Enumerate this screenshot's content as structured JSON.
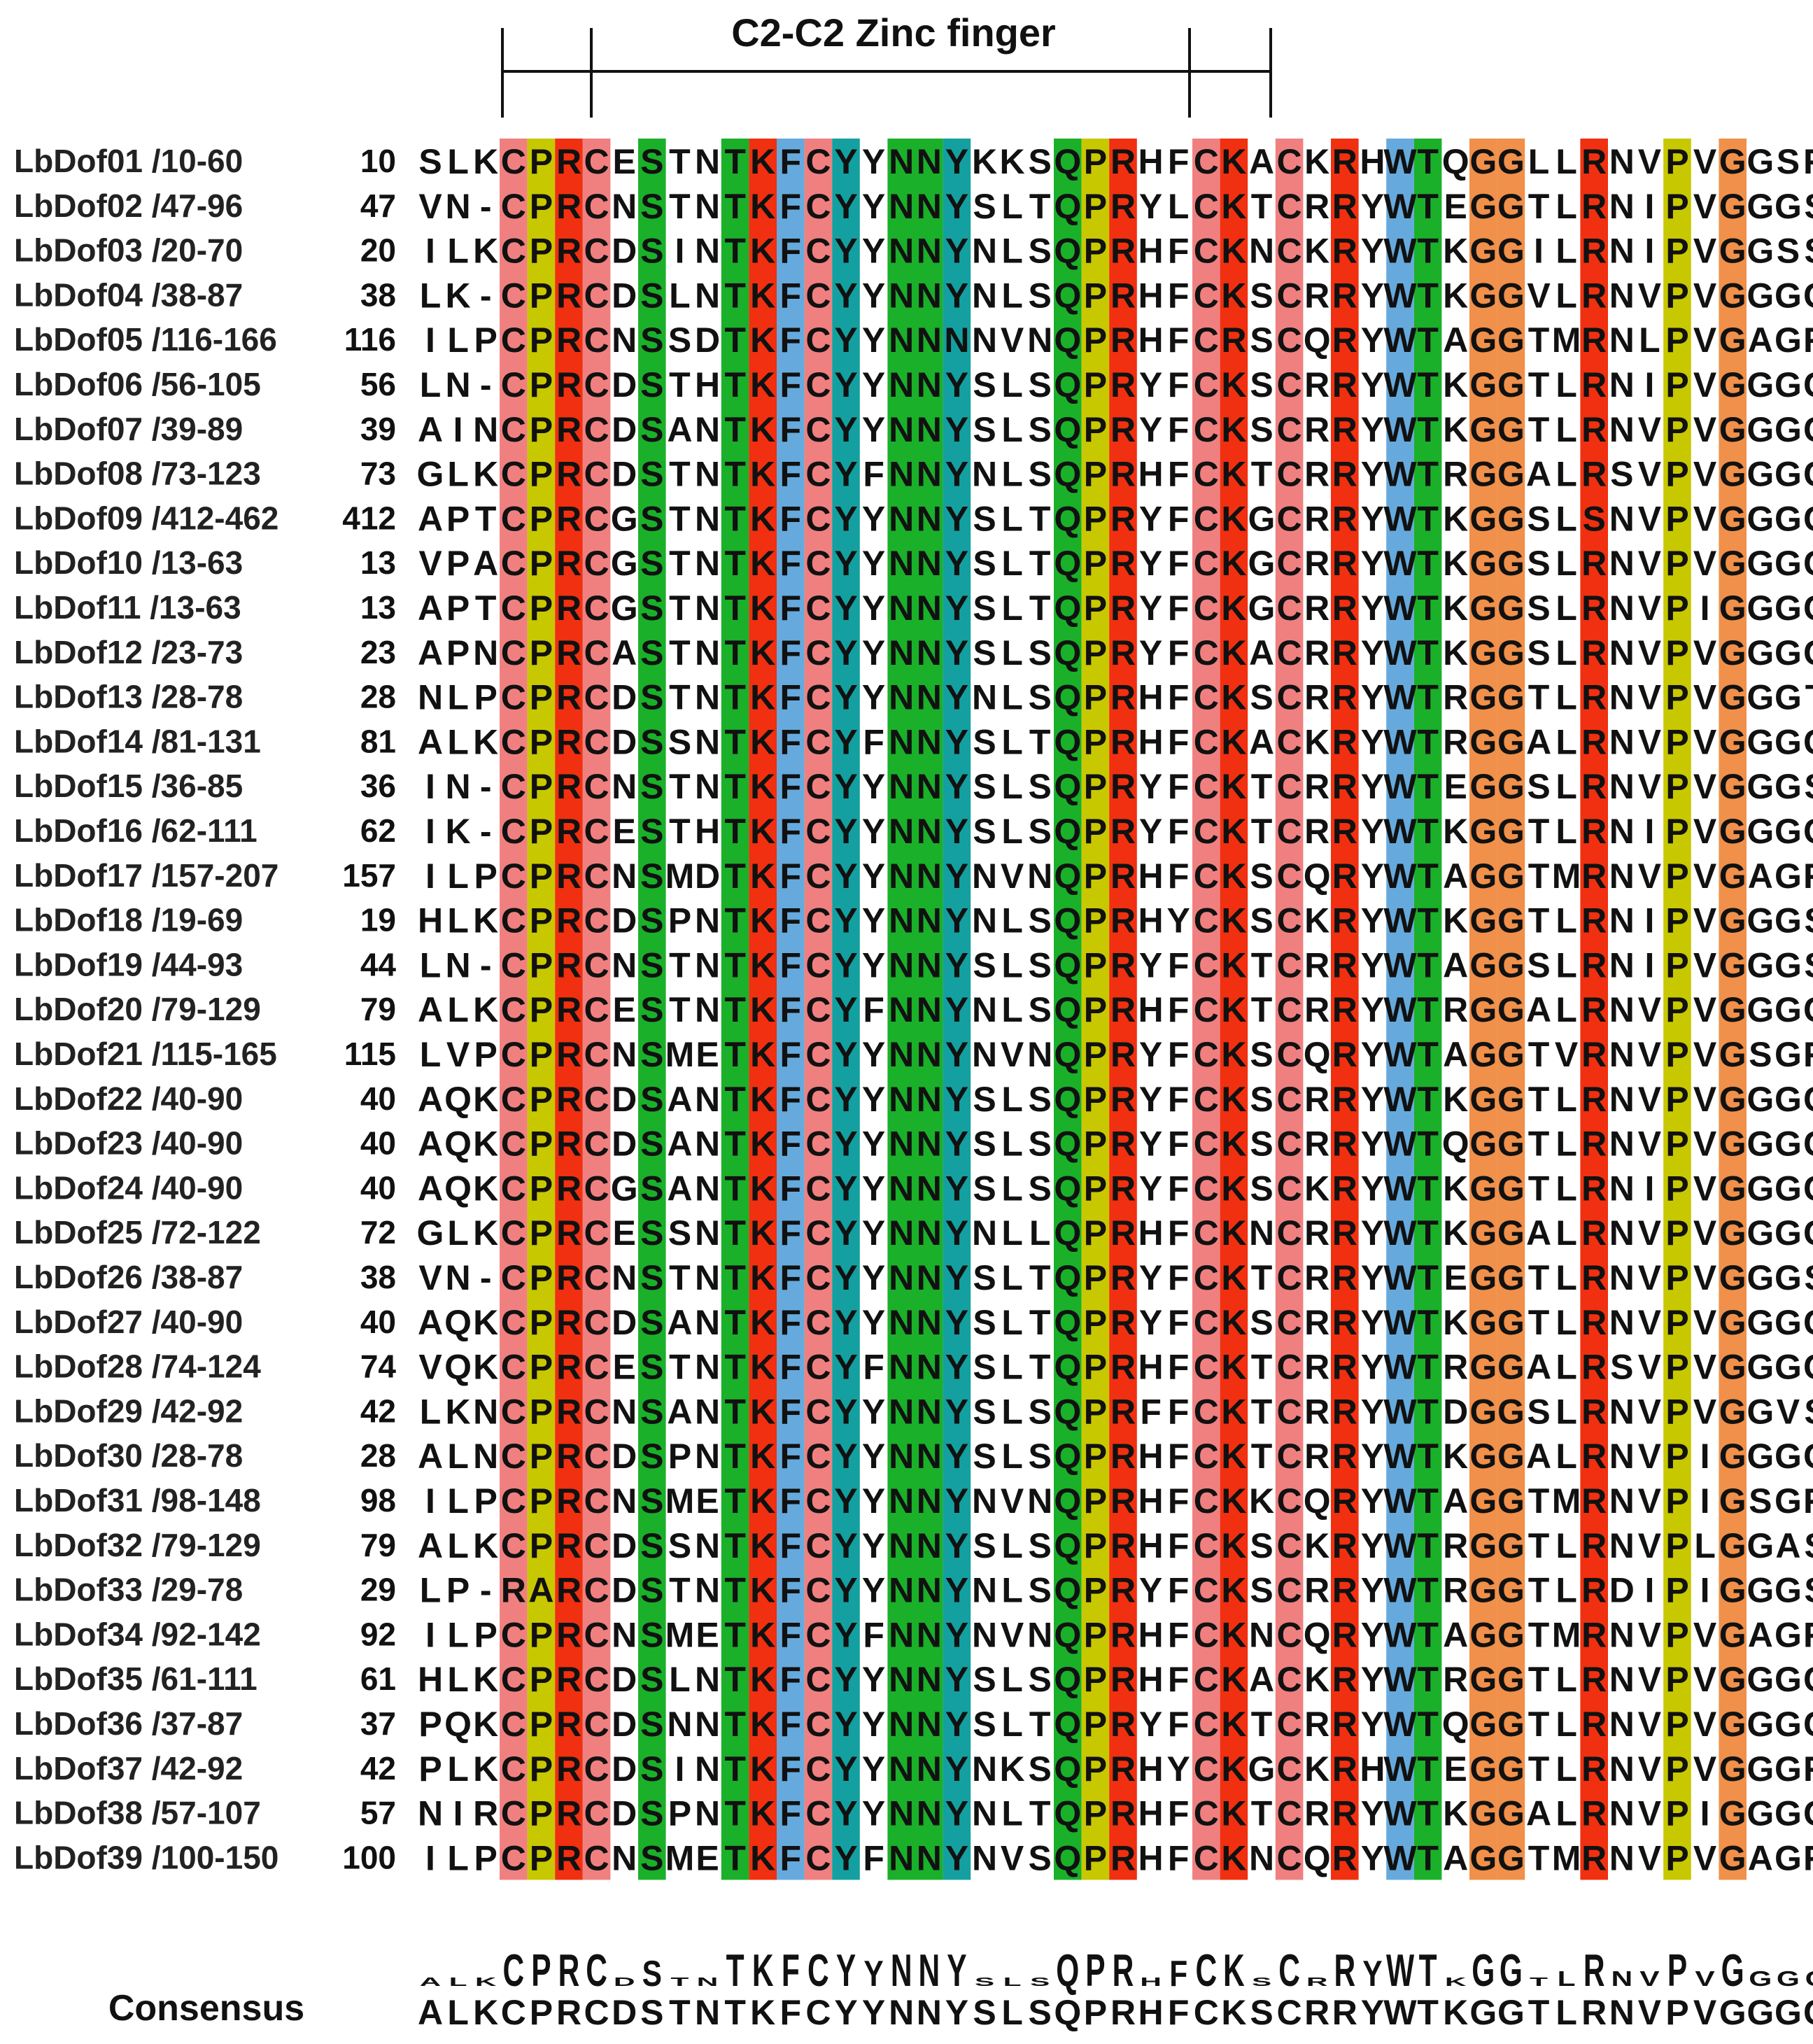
{
  "title": "C2-C2 Zinc finger",
  "colors": {
    "pink": "#f08080",
    "olive": "#c8c800",
    "red": "#f03010",
    "green": "#1ab02a",
    "blue": "#66aadd",
    "teal": "#14a0a0",
    "orange": "#f0904a",
    "logo_gray": "#bbbbbb"
  },
  "column_colors": [
    "",
    "",
    "",
    "pink",
    "olive",
    "red",
    "pink",
    "",
    "green",
    "",
    "",
    "green",
    "red",
    "blue",
    "pink",
    "teal",
    "",
    "green",
    "green",
    "teal",
    "",
    "",
    "",
    "green",
    "olive",
    "red",
    "",
    "",
    "pink",
    "red",
    "",
    "pink",
    "",
    "red",
    "",
    "blue",
    "green",
    "",
    "orange",
    "orange",
    "",
    "",
    "red",
    "",
    "",
    "olive",
    "",
    "orange",
    "",
    "",
    ""
  ],
  "sequences": [
    {
      "name": "LbDof01 /10-60",
      "start": "10",
      "seq": "SLKCPRCESTNTKFCYYNNYKKSQPRHFCKACKRHWTQGGLLRNVPVGGSR"
    },
    {
      "name": "LbDof02 /47-96",
      "start": "47",
      "seq": "VN-CPRCNSTNTKFCYYNNYSLTQPRYLCKTCRRYWTEGGTLRNIPVGGGS"
    },
    {
      "name": "LbDof03 /20-70",
      "start": "20",
      "seq": "ILKCPRCDSINTKFCYYNNYNLSQPRHFCKNCKRYWTKGGILRNIPVGGSS"
    },
    {
      "name": "LbDof04 /38-87",
      "start": "38",
      "seq": "LK-CPRCDSLNTKFCYYNNYNLSQPRHFCKSCRRYWTKGGVLRNVPVGGGC"
    },
    {
      "name": "LbDof05 /116-166",
      "start": "116",
      "seq": "ILPCPRCNSSDTKFCYYNNNNVNQPRHFCRSCQRYWTAGGTMRNLPVGAGR"
    },
    {
      "name": "LbDof06 /56-105",
      "start": "56",
      "seq": "LN-CPRCDSTHTKFCYYNNYSLSQPRYFCKSCRRYWTKGGTLRNIPVGGGC"
    },
    {
      "name": "LbDof07 /39-89",
      "start": "39",
      "seq": "AINCPRCDSANTKFCYYNNYSLSQPRYFCKSCRRYWTKGGTLRNVPVGGGC"
    },
    {
      "name": "LbDof08 /73-123",
      "start": "73",
      "seq": "GLKCPRCDSTNTKFCYFNNYNLSQPRHFCKTCRRYWTRGGALRSVPVGGGC"
    },
    {
      "name": "LbDof09 /412-462",
      "start": "412",
      "seq": "APTCPRCGSTNTKFCYYNNYSLTQPRYFCKGCRRYWTKGGSLSNVPVGGGC"
    },
    {
      "name": "LbDof10 /13-63",
      "start": "13",
      "seq": "VPACPRCGSTNTKFCYYNNYSLTQPRYFCKGCRRYWTKGGSLRNVPVGGGC"
    },
    {
      "name": "LbDof11 /13-63",
      "start": "13",
      "seq": "APTCPRCGSTNTKFCYYNNYSLTQPRYFCKGCRRYWTKGGSLRNVPIGGGC"
    },
    {
      "name": "LbDof12 /23-73",
      "start": "23",
      "seq": "APNCPRCASTNTKFCYYNNYSLSQPRYFCKACRRYWTKGGSLRNVPVGGGC"
    },
    {
      "name": "LbDof13 /28-78",
      "start": "28",
      "seq": "NLPCPRCDSTNTKFCYYNNYNLSQPRHFCKSCRRYWTRGGTLRNVPVGGGT"
    },
    {
      "name": "LbDof14 /81-131",
      "start": "81",
      "seq": "ALKCPRCDSSNTKFCYFNNYSLTQPRHFCKACKRYWTRGGALRNVPVGGGC"
    },
    {
      "name": "LbDof15 /36-85",
      "start": "36",
      "seq": "IN-CPRCNSTNTKFCYYNNYSLSQPRYFCKTCRRYWTEGGSLRNVPVGGGS"
    },
    {
      "name": "LbDof16 /62-111",
      "start": "62",
      "seq": "IK-CPRCESTHTKFCYYNNYSLSQPRYFCKTCRRYWTKGGTLRNIPVGGGC"
    },
    {
      "name": "LbDof17 /157-207",
      "start": "157",
      "seq": "ILPCPRCNSMDTKFCYYNNYNVNQPRHFCKSCQRYWTAGGTMRNVPVGAGR"
    },
    {
      "name": "LbDof18 /19-69",
      "start": "19",
      "seq": "HLKCPRCDSPNTKFCYYNNYNLSQPRHYCKSCKRYWTKGGTLRNIPVGGGS"
    },
    {
      "name": "LbDof19 /44-93",
      "start": "44",
      "seq": "LN-CPRCNSTNTKFCYYNNYSLSQPRYFCKTCRRYWTAGGSLRNIPVGGGS"
    },
    {
      "name": "LbDof20 /79-129",
      "start": "79",
      "seq": "ALKCPRCESTNTKFCYFNNYNLSQPRHFCKTCRRYWTRGGALRNVPVGGGC"
    },
    {
      "name": "LbDof21 /115-165",
      "start": "115",
      "seq": "LVPCPRCNSMETKFCYYNNYNVNQPRYFCKSCQRYWTAGGTVRNVPVGSGR"
    },
    {
      "name": "LbDof22 /40-90",
      "start": "40",
      "seq": "AQKCPRCDSANTKFCYYNNYSLSQPRYFCKSCRRYWTKGGTLRNVPVGGGC"
    },
    {
      "name": "LbDof23 /40-90",
      "start": "40",
      "seq": "AQKCPRCDSANTKFCYYNNYSLSQPRYFCKSCRRYWTQGGTLRNVPVGGGC"
    },
    {
      "name": "LbDof24 /40-90",
      "start": "40",
      "seq": "AQKCPRCGSANTKFCYYNNYSLSQPRYFCKSCKRYWTKGGTLRNIPVGGGC"
    },
    {
      "name": "LbDof25 /72-122",
      "start": "72",
      "seq": "GLKCPRCESSNTKFCYYNNYNLLQPRHFCKNCRRYWTKGGALRNVPVGGGC"
    },
    {
      "name": "LbDof26 /38-87",
      "start": "38",
      "seq": "VN-CPRCNSTNTKFCYYNNYSLTQPRYFCKTCRRYWTEGGTLRNVPVGGGS"
    },
    {
      "name": "LbDof27 /40-90",
      "start": "40",
      "seq": "AQKCPRCDSANTKFCYYNNYSLTQPRYFCKSCRRYWTKGGTLRNVPVGGGC"
    },
    {
      "name": "LbDof28 /74-124",
      "start": "74",
      "seq": "VQKCPRCESTNTKFCYFNNYSLTQPRHFCKTCRRYWTRGGALRSVPVGGGC"
    },
    {
      "name": "LbDof29 /42-92",
      "start": "42",
      "seq": "LKNCPRCNSANTKFCYYNNYSLSQPRFFCKTCRRYWTDGGSLRNVPVGGVS"
    },
    {
      "name": "LbDof30 /28-78",
      "start": "28",
      "seq": "ALNCPRCDSPNTKFCYYNNYSLSQPRHFCKTCRRYWTKGGALRNVPIGGGC"
    },
    {
      "name": "LbDof31 /98-148",
      "start": "98",
      "seq": "ILPCPRCNSMETKFCYYNNYNVNQPRHFCKKCQRYWTAGGTMRNVPIGSGR"
    },
    {
      "name": "LbDof32 /79-129",
      "start": "79",
      "seq": "ALKCPRCDSSNTKFCYYNNYSLSQPRHFCKSCKRYWTRGGTLRNVPLGGAS"
    },
    {
      "name": "LbDof33 /29-78",
      "start": "29",
      "seq": "LP-RARCDSTNTKFCYYNNYNLSQPRYFCKSCRRYWTRGGTLRDIPIGGGS"
    },
    {
      "name": "LbDof34 /92-142",
      "start": "92",
      "seq": "ILPCPRCNSMETKFCYFNNYNVNQPRHFCKNCQRYWTAGGTMRNVPVGAGR"
    },
    {
      "name": "LbDof35 /61-111",
      "start": "61",
      "seq": "HLKCPRCDSLNTKFCYYNNYSLSQPRHFCKACKRYWTRGGTLRNVPVGGGC"
    },
    {
      "name": "LbDof36 /37-87",
      "start": "37",
      "seq": "PQKCPRCDSNNTKFCYYNNYSLTQPRYFCKTCRRYWTQGGTLRNVPVGGGC"
    },
    {
      "name": "LbDof37 /42-92",
      "start": "42",
      "seq": "PLKCPRCDSINTKFCYYNNYNKSQPRHYCKGCKRHWTEGGTLRNVPVGGGR"
    },
    {
      "name": "LbDof38 /57-107",
      "start": "57",
      "seq": "NIRCPRCDSPNTKFCYYNNYNLTQPRHFCKTCRRYWTKGGALRNVPIGGGC"
    },
    {
      "name": "LbDof39 /100-150",
      "start": "100",
      "seq": "ILPCPRCNSMETKFCYFNNYNVSQPRHFCKNCQRYWTAGGTMRNVPVGAGR"
    }
  ],
  "consensus": {
    "label": "Consensus",
    "seq": "ALKCPRCDSTNTKFCYYNNYSLSQPRHFCKSCRRYWTKGGTLRNVPVGGGC",
    "logo": "ALKCPRCDSTNTKFCYYNNYSLSQPRHFCKSCRRYWTKGGTLRNVPVGGGC",
    "logo_heights": [
      0.2,
      0.2,
      0.2,
      0.75,
      0.75,
      0.75,
      0.75,
      0.2,
      0.6,
      0.2,
      0.2,
      0.75,
      0.75,
      0.75,
      0.75,
      0.75,
      0.6,
      0.75,
      0.75,
      0.75,
      0.2,
      0.2,
      0.2,
      0.75,
      0.75,
      0.75,
      0.2,
      0.6,
      0.75,
      0.75,
      0.2,
      0.75,
      0.2,
      0.75,
      0.6,
      0.75,
      0.75,
      0.2,
      0.75,
      0.75,
      0.2,
      0.35,
      0.75,
      0.35,
      0.35,
      0.75,
      0.35,
      0.75,
      0.35,
      0.35,
      0.35
    ],
    "logo_colors": [
      "logo_gray",
      "logo_gray",
      "logo_gray",
      "pink",
      "pink",
      "red",
      "pink",
      "logo_gray",
      "green",
      "logo_gray",
      "logo_gray",
      "green",
      "red",
      "blue",
      "pink",
      "teal",
      "teal",
      "green",
      "green",
      "teal",
      "logo_gray",
      "logo_gray",
      "logo_gray",
      "green",
      "olive",
      "red",
      "logo_gray",
      "logo_gray",
      "pink",
      "red",
      "logo_gray",
      "pink",
      "logo_gray",
      "red",
      "blue",
      "blue",
      "green",
      "logo_gray",
      "orange",
      "orange",
      "logo_gray",
      "logo_gray",
      "red",
      "logo_gray",
      "logo_gray",
      "olive",
      "logo_gray",
      "orange",
      "logo_gray",
      "logo_gray",
      "logo_gray"
    ]
  }
}
